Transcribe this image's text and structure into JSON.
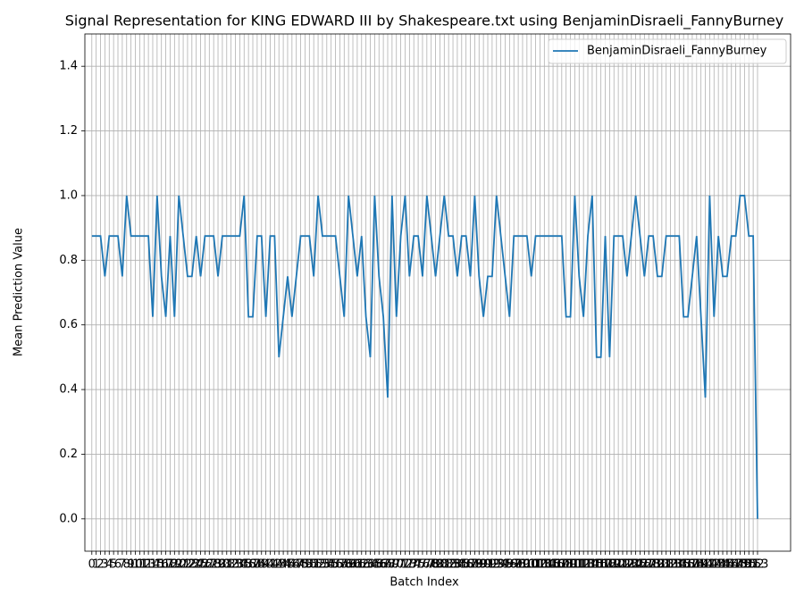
{
  "chart_data": {
    "type": "line",
    "title": "Signal Representation for KING EDWARD III by Shakespeare.txt using BenjaminDisraeli_FannyBurney",
    "x_label": "Batch Index",
    "y_label": "Mean Prediction Value",
    "x": [
      0,
      1,
      2,
      3,
      4,
      5,
      6,
      7,
      8,
      9,
      10,
      11,
      12,
      13,
      14,
      15,
      16,
      17,
      18,
      19,
      20,
      21,
      22,
      23,
      24,
      25,
      26,
      27,
      28,
      29,
      30,
      31,
      32,
      33,
      34,
      35,
      36,
      37,
      38,
      39,
      40,
      41,
      42,
      43,
      44,
      45,
      46,
      47,
      48,
      49,
      50,
      51,
      52,
      53,
      54,
      55,
      56,
      57,
      58,
      59,
      60,
      61,
      62,
      63,
      64,
      65,
      66,
      67,
      68,
      69,
      70,
      71,
      72,
      73,
      74,
      75,
      76,
      77,
      78,
      79,
      80,
      81,
      82,
      83,
      84,
      85,
      86,
      87,
      88,
      89,
      90,
      91,
      92,
      93,
      94,
      95,
      96,
      97,
      98,
      99,
      100,
      101,
      102,
      103,
      104,
      105,
      106,
      107,
      108,
      109,
      110,
      111,
      112,
      113,
      114,
      115,
      116,
      117,
      118,
      119,
      120,
      121,
      122,
      123,
      124,
      125,
      126,
      127,
      128,
      129,
      130,
      131,
      132,
      133,
      134,
      135,
      136,
      137,
      138,
      139,
      140,
      141,
      142,
      143,
      144,
      145,
      146,
      147,
      148,
      149,
      150,
      151,
      152,
      153
    ],
    "series": [
      {
        "name": "BenjaminDisraeli_FannyBurney",
        "color": "#1f77b4",
        "values": [
          0.875,
          0.875,
          0.875,
          0.75,
          0.875,
          0.875,
          0.875,
          0.75,
          1.0,
          0.875,
          0.875,
          0.875,
          0.875,
          0.875,
          0.625,
          1.0,
          0.75,
          0.625,
          0.875,
          0.625,
          1.0,
          0.875,
          0.75,
          0.75,
          0.875,
          0.75,
          0.875,
          0.875,
          0.875,
          0.75,
          0.875,
          0.875,
          0.875,
          0.875,
          0.875,
          1.0,
          0.625,
          0.625,
          0.875,
          0.875,
          0.625,
          0.875,
          0.875,
          0.5,
          0.625,
          0.75,
          0.625,
          0.75,
          0.875,
          0.875,
          0.875,
          0.75,
          1.0,
          0.875,
          0.875,
          0.875,
          0.875,
          0.75,
          0.625,
          1.0,
          0.875,
          0.75,
          0.875,
          0.625,
          0.5,
          1.0,
          0.75,
          0.625,
          0.375,
          1.0,
          0.625,
          0.875,
          1.0,
          0.75,
          0.875,
          0.875,
          0.75,
          1.0,
          0.875,
          0.75,
          0.875,
          1.0,
          0.875,
          0.875,
          0.75,
          0.875,
          0.875,
          0.75,
          1.0,
          0.75,
          0.625,
          0.75,
          0.75,
          1.0,
          0.875,
          0.75,
          0.625,
          0.875,
          0.875,
          0.875,
          0.875,
          0.75,
          0.875,
          0.875,
          0.875,
          0.875,
          0.875,
          0.875,
          0.875,
          0.625,
          0.625,
          1.0,
          0.75,
          0.625,
          0.875,
          1.0,
          0.5,
          0.5,
          0.875,
          0.5,
          0.875,
          0.875,
          0.875,
          0.75,
          0.875,
          1.0,
          0.875,
          0.75,
          0.875,
          0.875,
          0.75,
          0.75,
          0.875,
          0.875,
          0.875,
          0.875,
          0.625,
          0.625,
          0.75,
          0.875,
          0.625,
          0.375,
          1.0,
          0.625,
          0.875,
          0.75,
          0.75,
          0.875,
          0.875,
          1.0,
          1.0,
          0.875,
          0.875,
          0.0
        ]
      }
    ],
    "xlim": [
      -1.6,
      160.6
    ],
    "xticks": [
      0,
      1,
      2,
      3,
      4,
      5,
      6,
      7,
      8,
      9,
      10,
      11,
      12,
      13,
      14,
      15,
      16,
      17,
      18,
      19,
      20,
      21,
      22,
      23,
      24,
      25,
      26,
      27,
      28,
      29,
      30,
      31,
      32,
      33,
      34,
      35,
      36,
      37,
      38,
      39,
      40,
      41,
      42,
      43,
      44,
      45,
      46,
      47,
      48,
      49,
      50,
      51,
      52,
      53,
      54,
      55,
      56,
      57,
      58,
      59,
      60,
      61,
      62,
      63,
      64,
      65,
      66,
      67,
      68,
      69,
      70,
      71,
      72,
      73,
      74,
      75,
      76,
      77,
      78,
      79,
      80,
      81,
      82,
      83,
      84,
      85,
      86,
      87,
      88,
      89,
      90,
      91,
      92,
      93,
      94,
      95,
      96,
      97,
      98,
      99,
      100,
      101,
      102,
      103,
      104,
      105,
      106,
      107,
      108,
      109,
      110,
      111,
      112,
      113,
      114,
      115,
      116,
      117,
      118,
      119,
      120,
      121,
      122,
      123,
      124,
      125,
      126,
      127,
      128,
      129,
      130,
      131,
      132,
      133,
      134,
      135,
      136,
      137,
      138,
      139,
      140,
      141,
      142,
      143,
      144,
      145,
      146,
      147,
      148,
      149,
      150,
      151,
      152,
      153
    ],
    "ylim": [
      -0.1,
      1.5
    ],
    "yticks": [
      {
        "value": 0,
        "label": "0.0"
      },
      0.2,
      0.4,
      0.6,
      0.8,
      {
        "value": 1,
        "label": "1.0"
      },
      1.2,
      1.4
    ],
    "grid": true,
    "legend": "upper right"
  }
}
